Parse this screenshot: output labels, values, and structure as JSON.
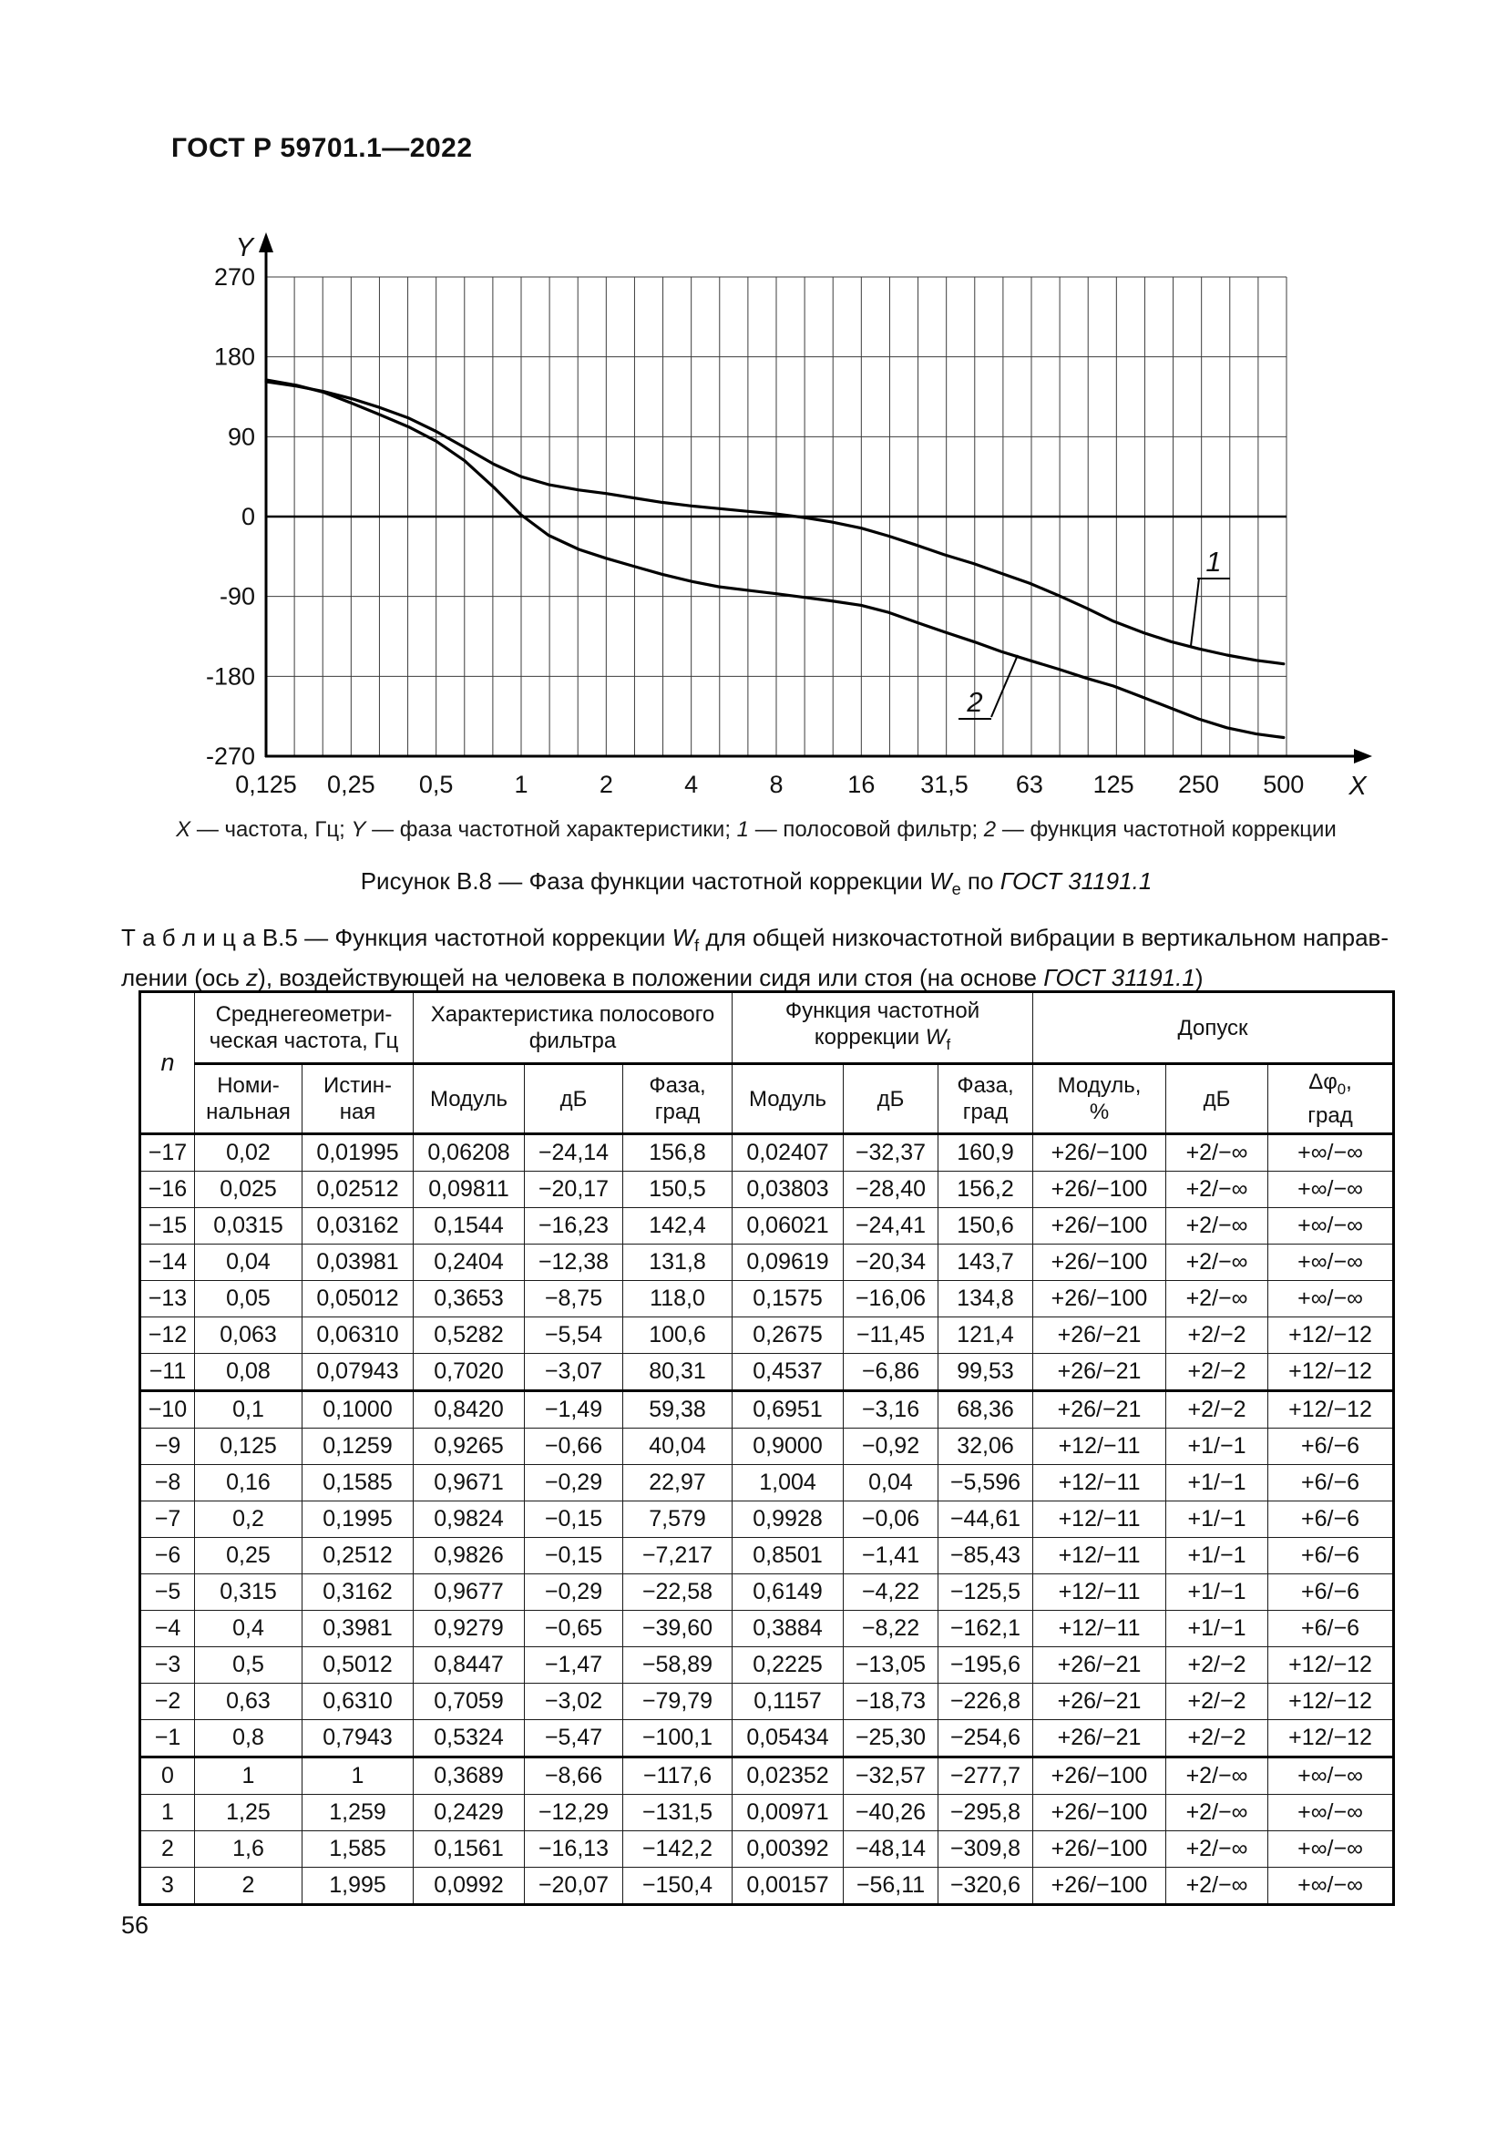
{
  "page": {
    "header_title": "ГОСТ Р 59701.1—2022",
    "page_number": "56"
  },
  "chart_data": {
    "type": "line",
    "title": "",
    "x_axis": {
      "label": "X",
      "meaning": "частота, Гц",
      "scale": "log2",
      "min": 0.125,
      "max": 500,
      "minor_gridlines_per_octave": 3,
      "tick_labels": [
        "0,125",
        "0,25",
        "0,5",
        "1",
        "2",
        "4",
        "8",
        "16",
        "31,5",
        "63",
        "125",
        "250",
        "500"
      ],
      "tick_values": [
        0.125,
        0.25,
        0.5,
        1,
        2,
        4,
        8,
        16,
        31.5,
        63,
        125,
        250,
        500
      ]
    },
    "y_axis": {
      "label": "Y",
      "meaning": "фаза частотной характеристики",
      "min": -270,
      "max": 270,
      "ticks": [
        270,
        180,
        90,
        0,
        -90,
        -180,
        -270
      ]
    },
    "grid": true,
    "legend_position": "curve-labels-with-leaders",
    "series": [
      {
        "id": "1",
        "name": "полосовой фильтр",
        "points": [
          [
            0.125,
            152
          ],
          [
            0.16,
            147
          ],
          [
            0.2,
            141
          ],
          [
            0.25,
            133
          ],
          [
            0.315,
            123
          ],
          [
            0.4,
            111
          ],
          [
            0.5,
            96
          ],
          [
            0.63,
            78
          ],
          [
            0.8,
            59
          ],
          [
            1,
            45
          ],
          [
            1.25,
            36
          ],
          [
            1.6,
            30
          ],
          [
            2,
            26
          ],
          [
            2.5,
            21
          ],
          [
            3.15,
            16
          ],
          [
            4,
            12
          ],
          [
            5,
            9
          ],
          [
            6.3,
            6
          ],
          [
            8,
            3
          ],
          [
            10,
            -1
          ],
          [
            12.5,
            -6
          ],
          [
            16,
            -13
          ],
          [
            20,
            -22
          ],
          [
            25,
            -32
          ],
          [
            31.5,
            -43
          ],
          [
            40,
            -53
          ],
          [
            50,
            -64
          ],
          [
            63,
            -75
          ],
          [
            80,
            -89
          ],
          [
            100,
            -103
          ],
          [
            125,
            -118
          ],
          [
            160,
            -131
          ],
          [
            200,
            -141
          ],
          [
            250,
            -149
          ],
          [
            315,
            -156
          ],
          [
            400,
            -162
          ],
          [
            500,
            -166
          ]
        ]
      },
      {
        "id": "2",
        "name": "функция частотной коррекции",
        "points": [
          [
            0.125,
            154
          ],
          [
            0.16,
            148
          ],
          [
            0.2,
            140
          ],
          [
            0.25,
            128
          ],
          [
            0.315,
            115
          ],
          [
            0.4,
            101
          ],
          [
            0.5,
            85
          ],
          [
            0.63,
            63
          ],
          [
            0.8,
            33
          ],
          [
            1,
            2
          ],
          [
            1.25,
            -21
          ],
          [
            1.6,
            -37
          ],
          [
            2,
            -47
          ],
          [
            2.5,
            -56
          ],
          [
            3.15,
            -65
          ],
          [
            4,
            -73
          ],
          [
            5,
            -79
          ],
          [
            6.3,
            -83
          ],
          [
            8,
            -87
          ],
          [
            10,
            -91
          ],
          [
            12.5,
            -95
          ],
          [
            16,
            -100
          ],
          [
            20,
            -108
          ],
          [
            25,
            -119
          ],
          [
            31.5,
            -130
          ],
          [
            40,
            -141
          ],
          [
            50,
            -152
          ],
          [
            63,
            -162
          ],
          [
            80,
            -172
          ],
          [
            100,
            -182
          ],
          [
            125,
            -191
          ],
          [
            160,
            -204
          ],
          [
            200,
            -216
          ],
          [
            250,
            -228
          ],
          [
            315,
            -238
          ],
          [
            400,
            -245
          ],
          [
            500,
            -249
          ]
        ]
      }
    ]
  },
  "figure": {
    "legend_parts": [
      "X",
      " — частота, Гц; ",
      "Y",
      " — фаза частотной характеристики; ",
      "1",
      " — полосовой фильтр; ",
      "2",
      " — функция частотной коррекции"
    ],
    "caption": {
      "before": "Рисунок В.8 — Фаза функции частотной коррекции ",
      "w": "W",
      "w_sub": "e",
      "middle": " по ",
      "gost": "ГОСТ 31191.1"
    }
  },
  "table": {
    "title_line1": {
      "lead": "Т а б л и ц а   В.5 — Функция частотной коррекции ",
      "w": "W",
      "w_sub": "f",
      "rest": " для общей низкочастотной вибрации в вертикальном направ-"
    },
    "title_line2": {
      "pre": "лении (ось ",
      "z": "z",
      "rest": "), воздействующей на человека в положении сидя или стоя (на основе ",
      "gost": "ГОСТ 31191.1",
      "end": ")"
    },
    "header": {
      "n": "n",
      "group1": [
        "Среднегеометри-",
        "ческая частота, Гц"
      ],
      "group2": [
        "Характеристика полосового",
        "фильтра"
      ],
      "group3": {
        "line1": "Функция частотной",
        "line2_pre": "коррекции ",
        "w": "W",
        "w_sub": "f"
      },
      "group4": "Допуск",
      "sub1": [
        "Номи-",
        "нальная"
      ],
      "sub2": [
        "Истин-",
        "ная"
      ],
      "sub3": "Модуль",
      "sub4": "дБ",
      "sub5": [
        "Фаза,",
        "град"
      ],
      "sub6": "Модуль",
      "sub7": "дБ",
      "sub8": [
        "Фаза,",
        "град"
      ],
      "sub9": [
        "Модуль,",
        "%"
      ],
      "sub10": "дБ",
      "dphi": {
        "base": "Δφ",
        "sub": "0",
        "after": ",",
        "line2": "град"
      }
    },
    "thick_top_rows": [
      7,
      17
    ],
    "rows": [
      [
        "−17",
        "0,02",
        "0,01995",
        "0,06208",
        "−24,14",
        "156,8",
        "0,02407",
        "−32,37",
        "160,9",
        "+26/−100",
        "+2/−∞",
        "+∞/−∞"
      ],
      [
        "−16",
        "0,025",
        "0,02512",
        "0,09811",
        "−20,17",
        "150,5",
        "0,03803",
        "−28,40",
        "156,2",
        "+26/−100",
        "+2/−∞",
        "+∞/−∞"
      ],
      [
        "−15",
        "0,0315",
        "0,03162",
        "0,1544",
        "−16,23",
        "142,4",
        "0,06021",
        "−24,41",
        "150,6",
        "+26/−100",
        "+2/−∞",
        "+∞/−∞"
      ],
      [
        "−14",
        "0,04",
        "0,03981",
        "0,2404",
        "−12,38",
        "131,8",
        "0,09619",
        "−20,34",
        "143,7",
        "+26/−100",
        "+2/−∞",
        "+∞/−∞"
      ],
      [
        "−13",
        "0,05",
        "0,05012",
        "0,3653",
        "−8,75",
        "118,0",
        "0,1575",
        "−16,06",
        "134,8",
        "+26/−100",
        "+2/−∞",
        "+∞/−∞"
      ],
      [
        "−12",
        "0,063",
        "0,06310",
        "0,5282",
        "−5,54",
        "100,6",
        "0,2675",
        "−11,45",
        "121,4",
        "+26/−21",
        "+2/−2",
        "+12/−12"
      ],
      [
        "−11",
        "0,08",
        "0,07943",
        "0,7020",
        "−3,07",
        "80,31",
        "0,4537",
        "−6,86",
        "99,53",
        "+26/−21",
        "+2/−2",
        "+12/−12"
      ],
      [
        "−10",
        "0,1",
        "0,1000",
        "0,8420",
        "−1,49",
        "59,38",
        "0,6951",
        "−3,16",
        "68,36",
        "+26/−21",
        "+2/−2",
        "+12/−12"
      ],
      [
        "−9",
        "0,125",
        "0,1259",
        "0,9265",
        "−0,66",
        "40,04",
        "0,9000",
        "−0,92",
        "32,06",
        "+12/−11",
        "+1/−1",
        "+6/−6"
      ],
      [
        "−8",
        "0,16",
        "0,1585",
        "0,9671",
        "−0,29",
        "22,97",
        "1,004",
        "0,04",
        "−5,596",
        "+12/−11",
        "+1/−1",
        "+6/−6"
      ],
      [
        "−7",
        "0,2",
        "0,1995",
        "0,9824",
        "−0,15",
        "7,579",
        "0,9928",
        "−0,06",
        "−44,61",
        "+12/−11",
        "+1/−1",
        "+6/−6"
      ],
      [
        "−6",
        "0,25",
        "0,2512",
        "0,9826",
        "−0,15",
        "−7,217",
        "0,8501",
        "−1,41",
        "−85,43",
        "+12/−11",
        "+1/−1",
        "+6/−6"
      ],
      [
        "−5",
        "0,315",
        "0,3162",
        "0,9677",
        "−0,29",
        "−22,58",
        "0,6149",
        "−4,22",
        "−125,5",
        "+12/−11",
        "+1/−1",
        "+6/−6"
      ],
      [
        "−4",
        "0,4",
        "0,3981",
        "0,9279",
        "−0,65",
        "−39,60",
        "0,3884",
        "−8,22",
        "−162,1",
        "+12/−11",
        "+1/−1",
        "+6/−6"
      ],
      [
        "−3",
        "0,5",
        "0,5012",
        "0,8447",
        "−1,47",
        "−58,89",
        "0,2225",
        "−13,05",
        "−195,6",
        "+26/−21",
        "+2/−2",
        "+12/−12"
      ],
      [
        "−2",
        "0,63",
        "0,6310",
        "0,7059",
        "−3,02",
        "−79,79",
        "0,1157",
        "−18,73",
        "−226,8",
        "+26/−21",
        "+2/−2",
        "+12/−12"
      ],
      [
        "−1",
        "0,8",
        "0,7943",
        "0,5324",
        "−5,47",
        "−100,1",
        "0,05434",
        "−25,30",
        "−254,6",
        "+26/−21",
        "+2/−2",
        "+12/−12"
      ],
      [
        "0",
        "1",
        "1",
        "0,3689",
        "−8,66",
        "−117,6",
        "0,02352",
        "−32,57",
        "−277,7",
        "+26/−100",
        "+2/−∞",
        "+∞/−∞"
      ],
      [
        "1",
        "1,25",
        "1,259",
        "0,2429",
        "−12,29",
        "−131,5",
        "0,00971",
        "−40,26",
        "−295,8",
        "+26/−100",
        "+2/−∞",
        "+∞/−∞"
      ],
      [
        "2",
        "1,6",
        "1,585",
        "0,1561",
        "−16,13",
        "−142,2",
        "0,00392",
        "−48,14",
        "−309,8",
        "+26/−100",
        "+2/−∞",
        "+∞/−∞"
      ],
      [
        "3",
        "2",
        "1,995",
        "0,0992",
        "−20,07",
        "−150,4",
        "0,00157",
        "−56,11",
        "−320,6",
        "+26/−100",
        "+2/−∞",
        "+∞/−∞"
      ]
    ]
  }
}
